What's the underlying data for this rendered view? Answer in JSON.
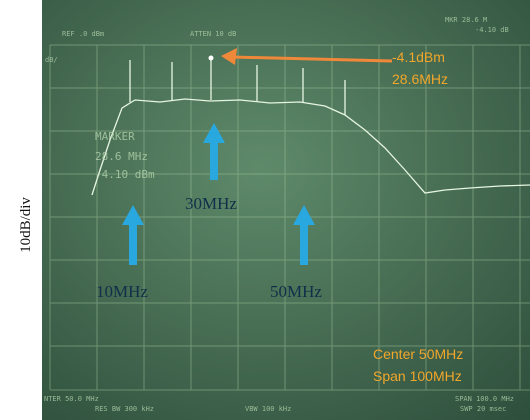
{
  "y_axis_label": "10dB/div",
  "screen": {
    "ref": "REF .0 dBm",
    "atten": "ATTEN 10 dB",
    "marker_readout": "MKR 28.6 M",
    "marker_level_readout": "-4.10 dB",
    "scale": "dB/",
    "marker_label": "MARKER",
    "marker_freq": "28.6 MHz",
    "marker_level": "-4.10 dBm",
    "center": "NTER 50.0 MHz",
    "res_bw": "RES BW 300 kHz",
    "vbw": "VBW 100 kHz",
    "span": "SPAN 100.0 MHz",
    "sweep": "SWP 20 msec"
  },
  "annotations": {
    "peak_level": "-4.1dBm",
    "peak_freq": "28.6MHz",
    "arrow_30": "30MHz",
    "arrow_10": "10MHz",
    "arrow_50": "50MHz",
    "center": "Center 50MHz",
    "span": "Span 100MHz"
  }
}
